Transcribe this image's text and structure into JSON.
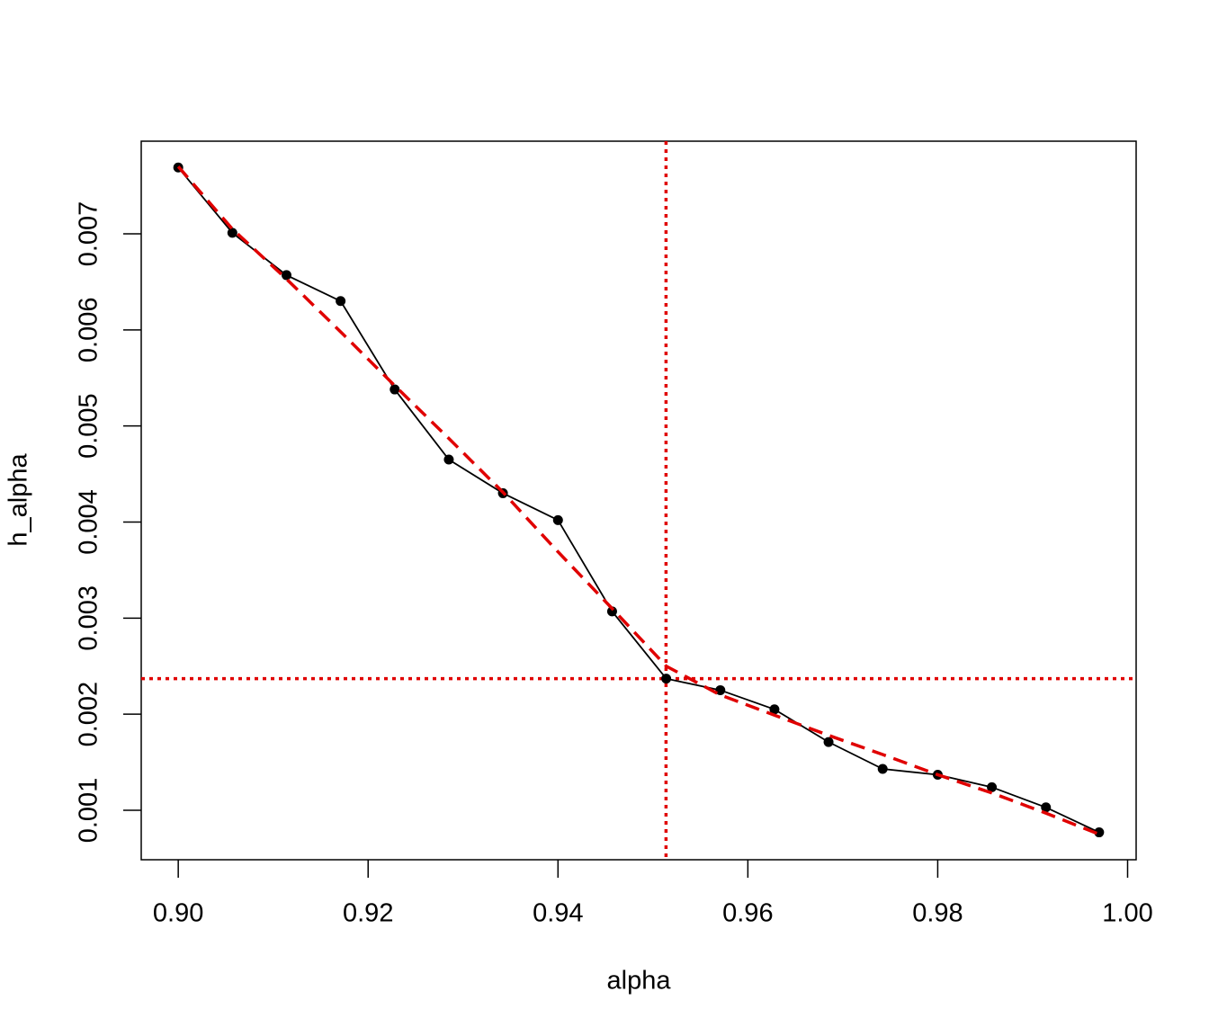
{
  "chart_data": {
    "type": "line",
    "x_label": "alpha",
    "y_label": "h_alpha",
    "x": [
      0.9,
      0.9057,
      0.9114,
      0.9171,
      0.9228,
      0.9285,
      0.9342,
      0.94,
      0.9457,
      0.9514,
      0.9571,
      0.9628,
      0.9685,
      0.9742,
      0.98,
      0.9857,
      0.9914,
      0.997
    ],
    "series": [
      {
        "color": "#000000",
        "line_style": "solid",
        "markers": true,
        "values": [
          0.00769,
          0.00701,
          0.00657,
          0.0063,
          0.00538,
          0.00465,
          0.0043,
          0.00402,
          0.00307,
          0.00237,
          0.00225,
          0.00205,
          0.00171,
          0.00143,
          0.00137,
          0.00124,
          0.00103,
          0.00077
        ]
      },
      {
        "color": "#e00000",
        "line_style": "dashed",
        "markers": false,
        "values": [
          0.0077,
          0.00705,
          0.00653,
          0.00598,
          0.00542,
          0.00487,
          0.00431,
          0.00369,
          0.0031,
          0.0025,
          0.0022,
          0.00199,
          0.00178,
          0.00158,
          0.00137,
          0.00118,
          0.00097,
          0.00075
        ]
      }
    ],
    "reference_lines": {
      "color": "#e00000",
      "vline": 0.95138,
      "hline": 0.00237
    },
    "xlim": [
      0.8961,
      1.0009
    ],
    "ylim": [
      0.000485,
      0.007964
    ],
    "xticks": [
      {
        "value": 0.9,
        "label": "0.90"
      },
      {
        "value": 0.92,
        "label": "0.92"
      },
      {
        "value": 0.94,
        "label": "0.94"
      },
      {
        "value": 0.96,
        "label": "0.96"
      },
      {
        "value": 0.98,
        "label": "0.98"
      },
      {
        "value": 1.0,
        "label": "1.00"
      }
    ],
    "yticks": [
      0.001,
      0.002,
      0.003,
      0.004,
      0.005,
      0.006,
      0.007
    ]
  }
}
